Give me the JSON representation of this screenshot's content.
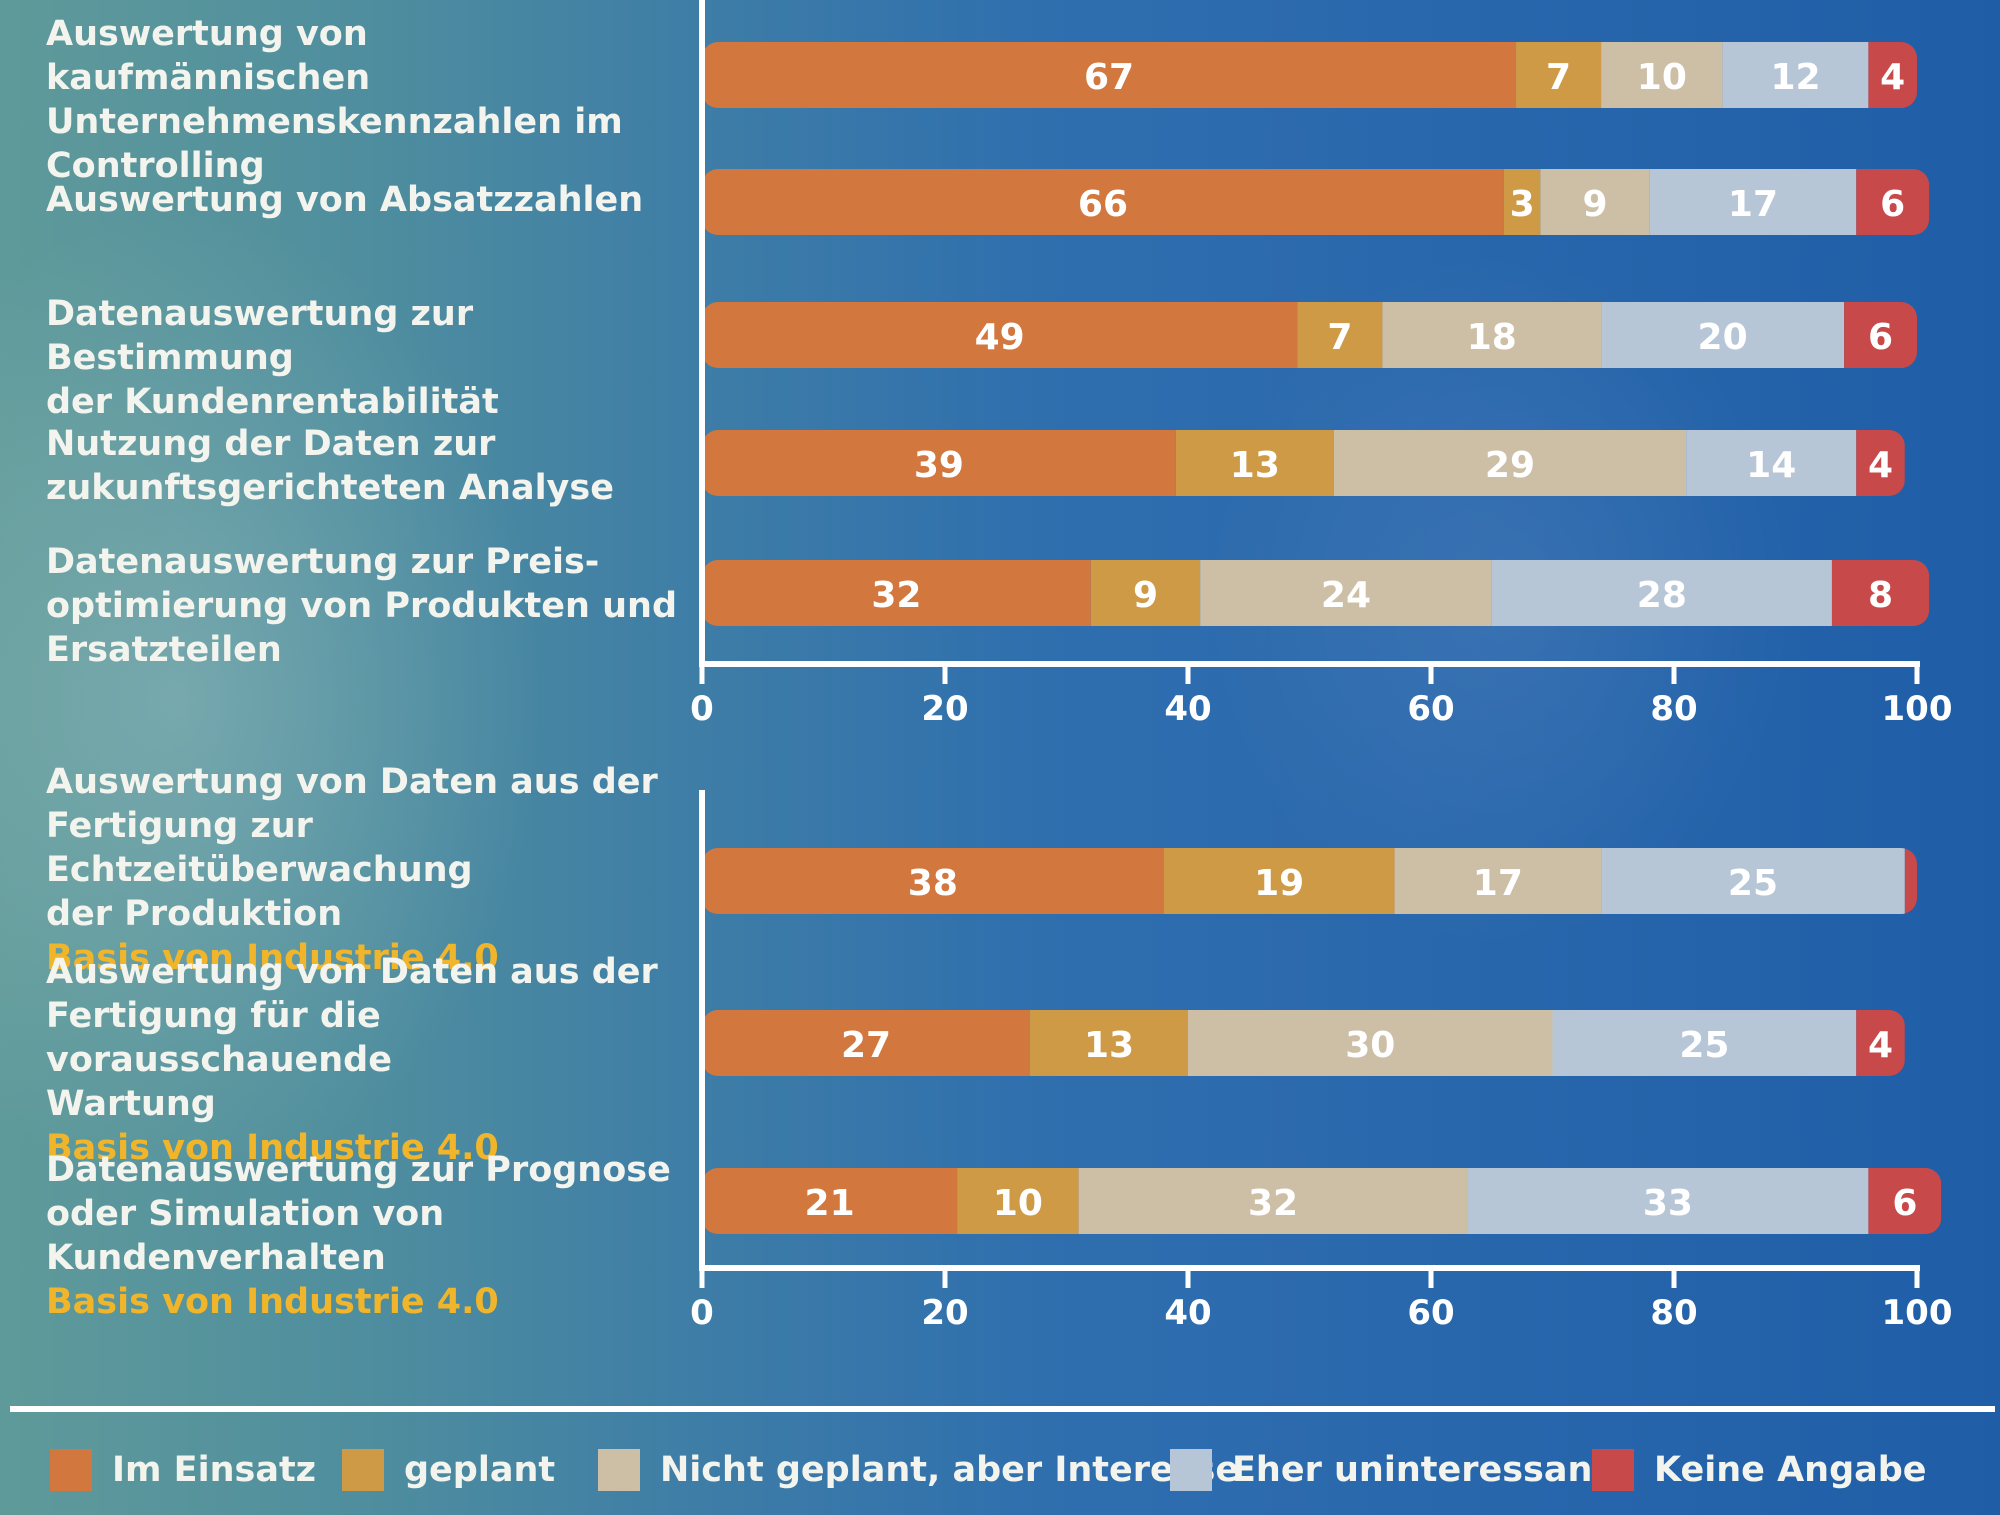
{
  "colors": {
    "Im Einsatz": "#d2773e",
    "geplant": "#cf9a45",
    "Nicht geplant, aber Interesse": "#cdbfa6",
    "Eher uninteressant": "#b7c6d6",
    "Keine Angabe": "#c7494a"
  },
  "legend": [
    {
      "label": "Im Einsatz"
    },
    {
      "label": "geplant"
    },
    {
      "label": "Nicht geplant, aber Interesse"
    },
    {
      "label": "Eher uninteressant"
    },
    {
      "label": "Keine Angabe"
    }
  ],
  "chart_data": [
    {
      "type": "bar",
      "orientation": "horizontal",
      "stacked": true,
      "xlim": [
        0,
        100
      ],
      "xticks": [
        0,
        20,
        40,
        60,
        80,
        100
      ],
      "categories": [
        "Auswertung von kaufmännischen Unternehmenskennzahlen im Controlling",
        "Auswertung von Absatzzahlen",
        "Datenauswertung zur Bestimmung der Kundenrentabilität",
        "Nutzung der Daten zur zukunftsgerichteten Analyse",
        "Datenauswertung zur Preis-optimierung von Produkten und Ersatzteilen"
      ],
      "category_lines": [
        "Auswertung von kaufmännischen\nUnternehmenskennzahlen im\nControlling",
        "Auswertung von Absatzzahlen",
        "Datenauswertung zur Bestimmung\nder Kundenrentabilität",
        "Nutzung der Daten zur\nzukunftsgerichteten Analyse",
        "Datenauswertung zur Preis-\noptimierung von Produkten und\nErsatzteilen"
      ],
      "category_notes": [
        "",
        "",
        "",
        "",
        ""
      ],
      "series": [
        {
          "name": "Im Einsatz",
          "values": [
            67,
            66,
            49,
            39,
            32
          ]
        },
        {
          "name": "geplant",
          "values": [
            7,
            3,
            7,
            13,
            9
          ]
        },
        {
          "name": "Nicht geplant, aber Interesse",
          "values": [
            10,
            9,
            18,
            29,
            24
          ]
        },
        {
          "name": "Eher uninteressant",
          "values": [
            12,
            17,
            20,
            14,
            28
          ]
        },
        {
          "name": "Keine Angabe",
          "values": [
            4,
            6,
            6,
            4,
            8
          ]
        }
      ]
    },
    {
      "type": "bar",
      "orientation": "horizontal",
      "stacked": true,
      "xlim": [
        0,
        100
      ],
      "xticks": [
        0,
        20,
        40,
        60,
        80,
        100
      ],
      "categories": [
        "Auswertung von Daten aus der Fertigung zur Echtzeitüberwachung der Produktion",
        "Auswertung von Daten aus der Fertigung für die vorausschauende Wartung",
        "Datenauswertung zur Prognose oder Simulation von Kundenverhalten"
      ],
      "category_lines": [
        "Auswertung von Daten aus der\nFertigung zur Echtzeitüberwachung\nder Produktion",
        "Auswertung von Daten aus der\nFertigung für die vorausschauende\nWartung",
        "Datenauswertung zur Prognose\noder Simulation von Kundenverhalten"
      ],
      "category_notes": [
        "Basis von Industrie 4.0",
        "Basis von Industrie 4.0",
        "Basis von Industrie 4.0"
      ],
      "series": [
        {
          "name": "Im Einsatz",
          "values": [
            38,
            27,
            21
          ]
        },
        {
          "name": "geplant",
          "values": [
            19,
            13,
            10
          ]
        },
        {
          "name": "Nicht geplant, aber Interesse",
          "values": [
            17,
            30,
            32
          ]
        },
        {
          "name": "Eher uninteressant",
          "values": [
            25,
            25,
            33
          ]
        },
        {
          "name": "Keine Angabe",
          "values": [
            1,
            4,
            6
          ]
        }
      ]
    }
  ]
}
